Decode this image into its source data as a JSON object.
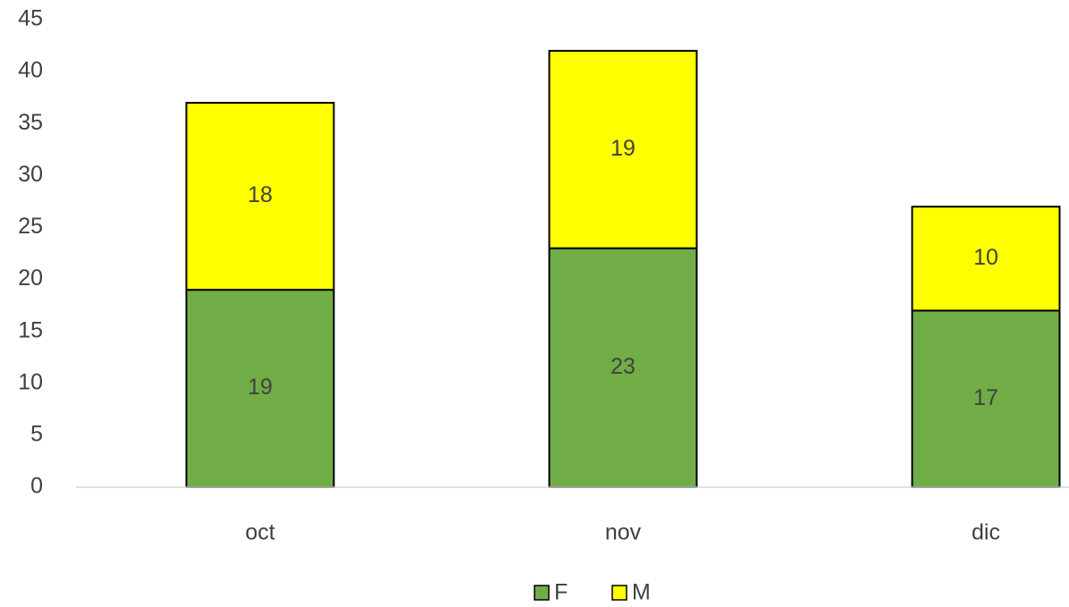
{
  "chart_data": {
    "type": "bar",
    "stacked": true,
    "categories": [
      "oct",
      "nov",
      "dic"
    ],
    "series": [
      {
        "name": "F",
        "color": "#70ad47",
        "values": [
          19,
          23,
          17
        ]
      },
      {
        "name": "M",
        "color": "#ffff00",
        "values": [
          18,
          19,
          10
        ]
      }
    ],
    "ylim": [
      0,
      45
    ],
    "yticks": [
      0,
      5,
      10,
      15,
      20,
      25,
      30,
      35,
      40,
      45
    ],
    "grid": false,
    "legend": "bottom"
  }
}
